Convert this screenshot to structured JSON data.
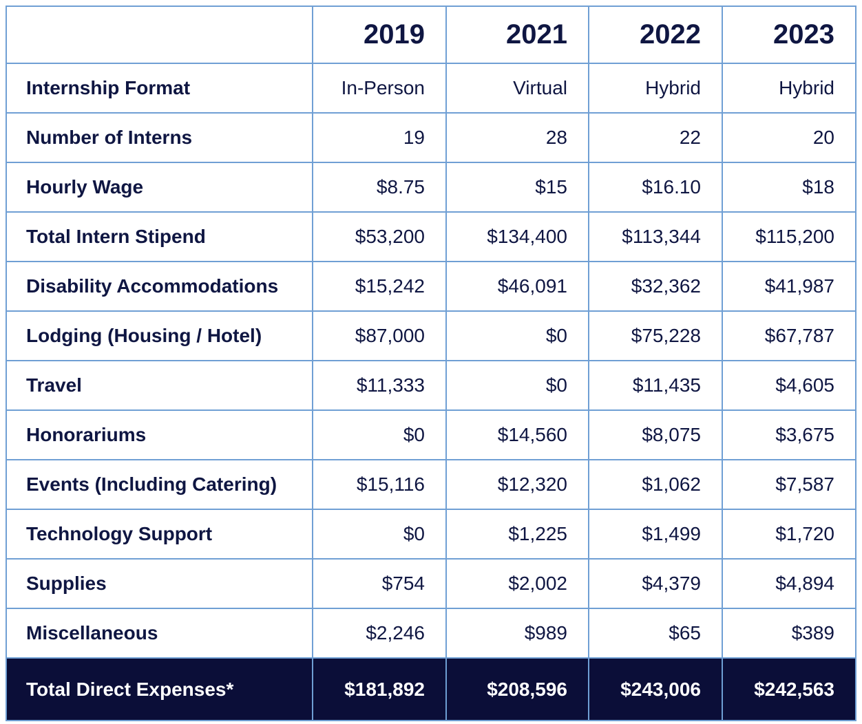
{
  "table": {
    "columns": [
      "2019",
      "2021",
      "2022",
      "2023"
    ],
    "rows": [
      {
        "label": "Internship Format",
        "values": [
          "In-Person",
          "Virtual",
          "Hybrid",
          "Hybrid"
        ]
      },
      {
        "label": "Number of Interns",
        "values": [
          "19",
          "28",
          "22",
          "20"
        ]
      },
      {
        "label": "Hourly Wage",
        "values": [
          "$8.75",
          "$15",
          "$16.10",
          "$18"
        ]
      },
      {
        "label": "Total Intern Stipend",
        "values": [
          "$53,200",
          "$134,400",
          "$113,344",
          "$115,200"
        ]
      },
      {
        "label": "Disability Accommodations",
        "values": [
          "$15,242",
          "$46,091",
          "$32,362",
          "$41,987"
        ]
      },
      {
        "label": "Lodging (Housing / Hotel)",
        "values": [
          "$87,000",
          "$0",
          "$75,228",
          "$67,787"
        ]
      },
      {
        "label": "Travel",
        "values": [
          "$11,333",
          "$0",
          "$11,435",
          "$4,605"
        ]
      },
      {
        "label": "Honorariums",
        "values": [
          "$0",
          "$14,560",
          "$8,075",
          "$3,675"
        ]
      },
      {
        "label": "Events (Including Catering)",
        "values": [
          "$15,116",
          "$12,320",
          "$1,062",
          "$7,587"
        ]
      },
      {
        "label": "Technology Support",
        "values": [
          "$0",
          "$1,225",
          "$1,499",
          "$1,720"
        ]
      },
      {
        "label": "Supplies",
        "values": [
          "$754",
          "$2,002",
          "$4,379",
          "$4,894"
        ]
      },
      {
        "label": "Miscellaneous",
        "values": [
          "$2,246",
          "$989",
          "$65",
          "$389"
        ]
      }
    ],
    "total": {
      "label": "Total Direct Expenses*",
      "values": [
        "$181,892",
        "$208,596",
        "$243,006",
        "$242,563"
      ]
    }
  }
}
